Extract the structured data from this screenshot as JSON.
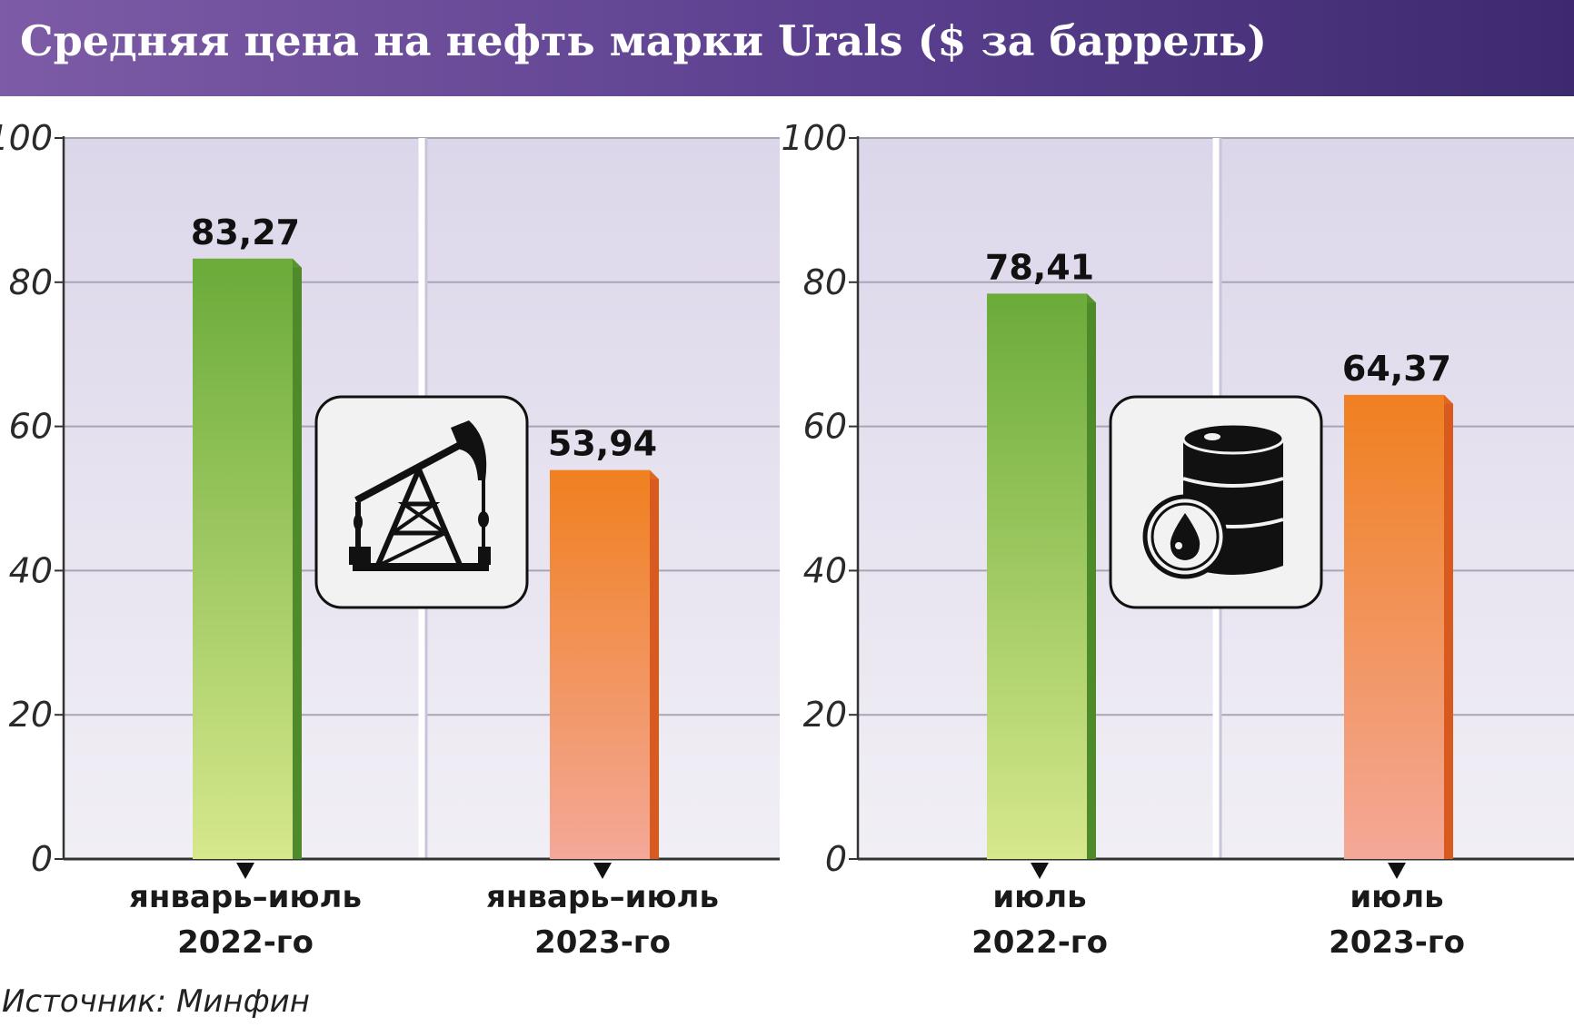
{
  "title": "Средняя цена на нефть марки Urals ($ за баррель)",
  "source": "Источник: Минфин",
  "colors": {
    "header_start": "#7d5ba6",
    "header_end": "#3d2a6e",
    "plot_bg": "#e6e2ef",
    "bar_green_top": "#6aab3a",
    "bar_green_bottom": "#d6e88c",
    "bar_orange_top": "#f08020",
    "bar_orange_bottom": "#f4a898"
  },
  "chart_data": [
    {
      "type": "bar",
      "ylim": [
        0,
        100
      ],
      "yticks": [
        "0",
        "20",
        "40",
        "60",
        "80",
        "100"
      ],
      "categories": [
        {
          "line1": "январь–июль",
          "line2": "2022-го"
        },
        {
          "line1": "январь–июль",
          "line2": "2023-го"
        }
      ],
      "values": [
        83.27,
        53.94
      ],
      "value_labels": [
        "83,27",
        "53,94"
      ],
      "bar_colors": [
        "green",
        "orange"
      ],
      "icon": "oil-pump-icon",
      "grid": true
    },
    {
      "type": "bar",
      "ylim": [
        0,
        100
      ],
      "yticks": [
        "0",
        "20",
        "40",
        "60",
        "80",
        "100"
      ],
      "categories": [
        {
          "line1": "июль",
          "line2": "2022-го"
        },
        {
          "line1": "июль",
          "line2": "2023-го"
        }
      ],
      "values": [
        78.41,
        64.37
      ],
      "value_labels": [
        "78,41",
        "64,37"
      ],
      "bar_colors": [
        "green",
        "orange"
      ],
      "icon": "oil-barrel-icon",
      "grid": true
    }
  ]
}
